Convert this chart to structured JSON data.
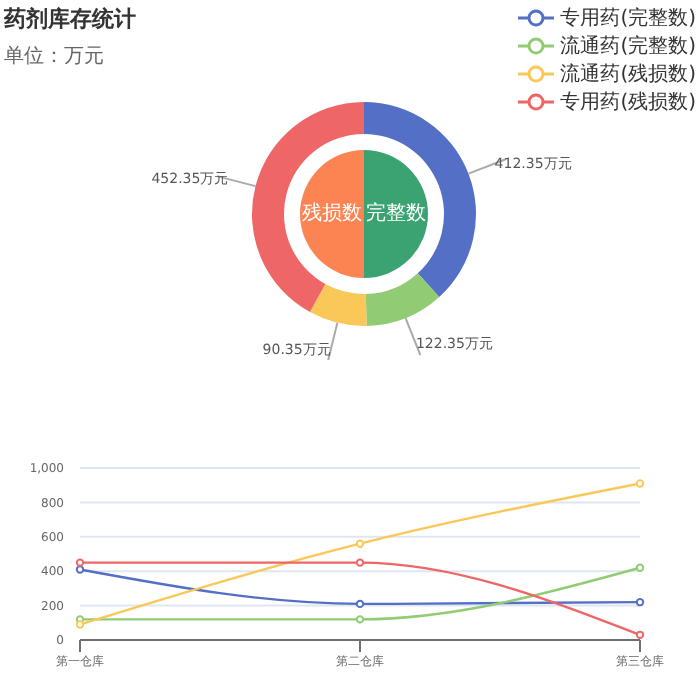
{
  "chart_data": [
    {
      "type": "donut",
      "title": "药剂库存统计",
      "subtitle": "单位：万元",
      "categories": [
        null,
        null,
        null,
        null
      ],
      "values": [
        412.35,
        122.35,
        90.35,
        452.35
      ],
      "value_labels": [
        "412.35万元",
        "122.35万元",
        "90.35万元",
        "452.35万元"
      ],
      "colors": [
        "#5470c6",
        "#91cc75",
        "#fac858",
        "#ee6666"
      ]
    },
    {
      "type": "pie",
      "categories": [
        "完整数",
        "残损数"
      ],
      "values": [
        50,
        50
      ],
      "colors": [
        "#3ba272",
        "#fc8452"
      ]
    },
    {
      "type": "line",
      "categories": [
        "第一仓库",
        "第二仓库",
        "第三仓库"
      ],
      "ylim": [
        0,
        1000
      ],
      "yticks": [
        0,
        200,
        400,
        600,
        800,
        {
          "value": 1000,
          "label": "1,000"
        }
      ],
      "grid": "y",
      "legend": "top right",
      "marker": "circle",
      "series": [
        {
          "name": "专用药(完整数)",
          "color": "#5470c6",
          "values": [
            410,
            210,
            220
          ]
        },
        {
          "name": "流通药(完整数)",
          "color": "#91cc75",
          "values": [
            120,
            120,
            420
          ]
        },
        {
          "name": "流通药(残损数)",
          "color": "#fac858",
          "values": [
            90,
            560,
            910
          ]
        },
        {
          "name": "专用药(残损数)",
          "color": "#ee6666",
          "values": [
            450,
            450,
            30
          ]
        }
      ]
    }
  ]
}
